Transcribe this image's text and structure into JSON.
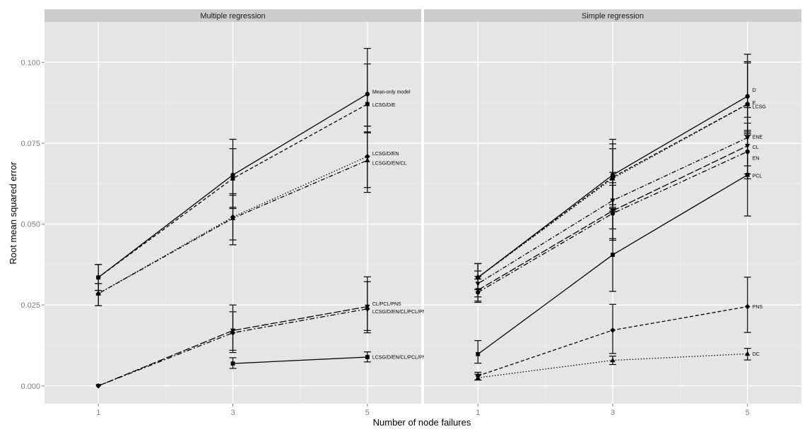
{
  "chart_data": {
    "type": "line",
    "xlabel": "Number of node failures",
    "ylabel": "Root mean squared error",
    "x": [
      1,
      3,
      5
    ],
    "x_ticks": [
      "1",
      "3",
      "5"
    ],
    "y_ticks": [
      "0.000",
      "0.025",
      "0.050",
      "0.075",
      "0.100"
    ],
    "xlim": [
      0.2,
      5.8
    ],
    "ylim": [
      -0.0055,
      0.1125
    ],
    "grid": true,
    "panels": [
      {
        "title": "Multiple regression",
        "series": [
          {
            "name": "Mean-only model",
            "dash": "solid",
            "marker": "circle",
            "values": [
              0.0335,
              0.0652,
              0.0902
            ],
            "err_low": [
              0.0295,
              0.0552,
              0.0803
            ],
            "err_high": [
              0.0375,
              0.0762,
              0.1043
            ]
          },
          {
            "name": "LCSG/D/E",
            "dash": "dashed",
            "marker": "square",
            "values": [
              0.0335,
              0.0641,
              0.0871
            ],
            "err_low": [
              0.0295,
              0.0548,
              0.0785
            ],
            "err_high": [
              0.0375,
              0.0733,
              0.0995
            ]
          },
          {
            "name": "LCSG/D/EN",
            "dash": "dotted",
            "marker": "diamond",
            "values": [
              0.0285,
              0.0522,
              0.0709
            ],
            "err_low": [
              0.0248,
              0.0451,
              0.0613
            ],
            "err_high": [
              0.0316,
              0.0594,
              0.0803
            ]
          },
          {
            "name": "LCSG/D/EN/CL",
            "dash": "dotdash",
            "marker": "triangle",
            "values": [
              0.0285,
              0.0518,
              0.0697
            ],
            "err_low": [
              0.0248,
              0.0436,
              0.0598
            ],
            "err_high": [
              0.0316,
              0.0589,
              0.0782
            ]
          },
          {
            "name": "CL/PCL/PNS",
            "dash": "longdash",
            "marker": "triangle-down",
            "values": [
              0.0,
              0.0171,
              0.0245
            ],
            "err_low": [
              0.0,
              0.011,
              0.0171
            ],
            "err_high": [
              0.0,
              0.025,
              0.0337
            ]
          },
          {
            "name": "LCSG/D/EN/CL/PCL/PNS",
            "dash": "twodash",
            "marker": "diamond",
            "values": [
              0.0,
              0.0164,
              0.0238
            ],
            "err_low": [
              0.0,
              0.0103,
              0.0164
            ],
            "err_high": [
              0.0,
              0.0229,
              0.0322
            ]
          },
          {
            "name": "LCSG/D/EN/CL/PCL/PNS/DC",
            "dash": "solid",
            "marker": "square",
            "values": [
              null,
              0.0069,
              0.0089
            ],
            "err_low": [
              null,
              0.0054,
              0.0074
            ],
            "err_high": [
              null,
              0.0087,
              0.0105
            ]
          }
        ]
      },
      {
        "title": "Simple regression",
        "series": [
          {
            "name": "D",
            "dash": "solid",
            "marker": "circle",
            "values": [
              0.0335,
              0.0652,
              0.0895
            ],
            "err_low": [
              0.0298,
              0.056,
              0.0785
            ],
            "err_high": [
              0.0378,
              0.0762,
              0.1025
            ]
          },
          {
            "name": "E",
            "dash": "dashed",
            "marker": "circle",
            "values": [
              0.0335,
              0.0645,
              0.0871
            ],
            "err_low": [
              0.0298,
              0.0552,
              0.078
            ],
            "err_high": [
              0.0378,
              0.0748,
              0.1002
            ]
          },
          {
            "name": "LCSG",
            "dash": "dotted",
            "marker": "triangle",
            "values": [
              0.0335,
              0.0641,
              0.087
            ],
            "err_low": [
              0.0298,
              0.0548,
              0.0775
            ],
            "err_high": [
              0.0378,
              0.0733,
              0.0998
            ]
          },
          {
            "name": "ENE",
            "dash": "dotdash",
            "marker": "triangle-down",
            "values": [
              0.0316,
              0.0573,
              0.0767
            ],
            "err_low": [
              0.0275,
              0.0485,
              0.068
            ],
            "err_high": [
              0.0355,
              0.066,
              0.086
            ]
          },
          {
            "name": "CL",
            "dash": "longdash",
            "marker": "triangle-down",
            "values": [
              0.0296,
              0.0541,
              0.0742
            ],
            "err_low": [
              0.0262,
              0.0455,
              0.0655
            ],
            "err_high": [
              0.0338,
              0.0628,
              0.083
            ]
          },
          {
            "name": "EN",
            "dash": "twodash",
            "marker": "circle",
            "values": [
              0.0289,
              0.0533,
              0.0724
            ],
            "err_low": [
              0.0258,
              0.045,
              0.064
            ],
            "err_high": [
              0.033,
              0.062,
              0.0812
            ]
          },
          {
            "name": "PCL",
            "dash": "solid",
            "marker": "square",
            "values": [
              0.0098,
              0.0405,
              0.0652
            ],
            "err_low": [
              0.007,
              0.0292,
              0.0525
            ],
            "err_high": [
              0.014,
              0.054,
              0.079
            ]
          },
          {
            "name": "PNS",
            "dash": "dashed",
            "marker": "diamond",
            "values": [
              0.0031,
              0.0172,
              0.0245
            ],
            "err_low": [
              0.0018,
              0.01,
              0.0165
            ],
            "err_high": [
              0.0042,
              0.0252,
              0.0336
            ]
          },
          {
            "name": "DC",
            "dash": "dotted",
            "marker": "triangle",
            "values": [
              0.0025,
              0.0079,
              0.0099
            ],
            "err_low": [
              0.0018,
              0.0066,
              0.008
            ],
            "err_high": [
              0.0036,
              0.0092,
              0.0116
            ]
          }
        ]
      }
    ]
  }
}
